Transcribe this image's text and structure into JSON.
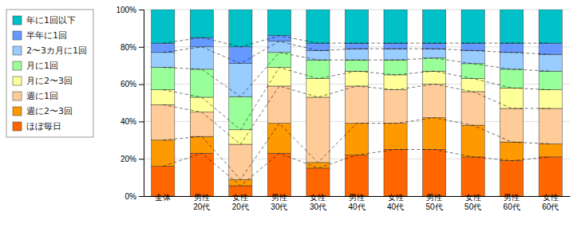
{
  "chart_data": {
    "type": "bar",
    "stacked": true,
    "grid": true,
    "legend": "upper left",
    "categories": [
      "全体",
      "男性\n20代",
      "女性\n20代",
      "男性\n30代",
      "女性\n30代",
      "男性\n40代",
      "女性\n40代",
      "男性\n50代",
      "女性\n50代",
      "男性\n60代",
      "女性\n60代"
    ],
    "series": [
      {
        "name": "年に1回以下",
        "color": "#00C0C8",
        "values": [
          18,
          15,
          20,
          14,
          18,
          18,
          18,
          18,
          18,
          18,
          18
        ]
      },
      {
        "name": "半年に1回",
        "color": "#6699FF",
        "values": [
          5,
          5,
          8.88888888888889,
          3,
          4,
          3,
          3,
          3,
          4,
          5,
          6
        ]
      },
      {
        "name": "2〜3カ月に1回",
        "color": "#99CCFF",
        "values": [
          8,
          12,
          17.77777777777778,
          6,
          5,
          6,
          6,
          5,
          7,
          9,
          9
        ]
      },
      {
        "name": "月に1回",
        "color": "#99FF99",
        "values": [
          12,
          15,
          17.77777777777778,
          8,
          10,
          6,
          8,
          7,
          8,
          10,
          10
        ]
      },
      {
        "name": "月に2〜3回",
        "color": "#FFFF99",
        "values": [
          8,
          8,
          7.777777777777778,
          10,
          10,
          8,
          8,
          7,
          7,
          11,
          10
        ]
      },
      {
        "name": "週に1回",
        "color": "#FFCC99",
        "values": [
          19,
          13,
          18.88888888888889,
          20,
          35,
          20,
          18,
          18,
          18,
          18,
          19
        ]
      },
      {
        "name": "週に2〜3回",
        "color": "#FF9900",
        "values": [
          14,
          9,
          3.333333333333333,
          16,
          3,
          17,
          14,
          17,
          17,
          10,
          7
        ]
      },
      {
        "name": "ほぼ毎日",
        "color": "#FF6600",
        "values": [
          16,
          23,
          5.555555555555555,
          23,
          15,
          22,
          25,
          25,
          21,
          19,
          21
        ]
      }
    ],
    "ylim": [
      0,
      100
    ],
    "yticks": [
      {
        "value": 0,
        "label": "0%"
      },
      {
        "value": 20,
        "label": "20%"
      },
      {
        "value": 40,
        "label": "40%"
      },
      {
        "value": 60,
        "label": "60%"
      },
      {
        "value": 80,
        "label": "80%"
      },
      {
        "value": 100,
        "label": "100%"
      }
    ]
  }
}
